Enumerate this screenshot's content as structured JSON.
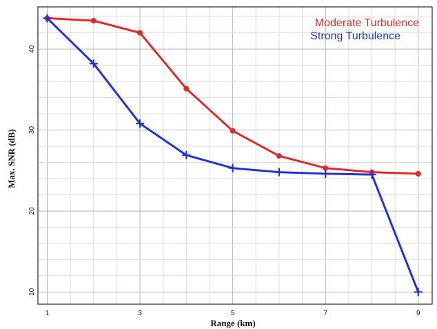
{
  "chart_data": {
    "type": "line",
    "xlabel": "Range (km)",
    "ylabel": "Max. SNR (dB)",
    "xlim": [
      0.8,
      9.3
    ],
    "ylim": [
      8.5,
      45.2
    ],
    "x_ticks": [
      1,
      3,
      5,
      7,
      9
    ],
    "x_tick_labels": [
      "1",
      "3",
      "5",
      "7",
      "9"
    ],
    "y_ticks": [
      10,
      20,
      30,
      40
    ],
    "y_tick_labels": [
      "10",
      "20",
      "30",
      "40"
    ],
    "x_minor_step": 0.5,
    "y_minor_step": 2,
    "grid": true,
    "legend_position": "top-right",
    "series": [
      {
        "name": "Moderate Turbulence",
        "color": "#e02a2a",
        "marker": "dot",
        "x": [
          1,
          2,
          3,
          4,
          5,
          6,
          7,
          8,
          9
        ],
        "y": [
          43.8,
          43.5,
          42.0,
          35.1,
          29.9,
          26.8,
          25.3,
          24.8,
          24.6
        ]
      },
      {
        "name": "Strong Turbulence",
        "color": "#2233d4",
        "marker": "cross",
        "x": [
          1,
          2,
          3,
          4,
          5,
          6,
          7,
          8,
          9
        ],
        "y": [
          43.8,
          38.2,
          30.8,
          26.9,
          25.3,
          24.8,
          24.6,
          24.5,
          10.0
        ]
      }
    ]
  }
}
